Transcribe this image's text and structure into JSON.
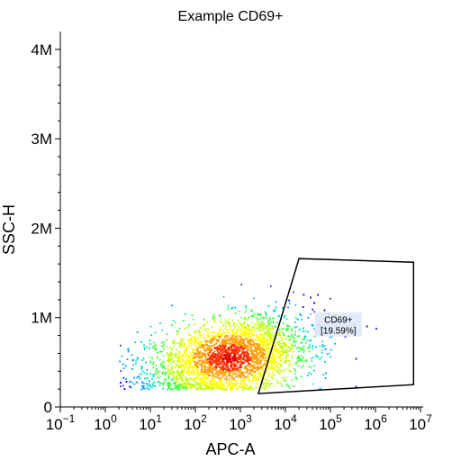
{
  "chart_data": {
    "type": "scatter",
    "title": "Example CD69+",
    "xlabel": "APC-A",
    "ylabel": "SSC-H",
    "x_scale": "log",
    "x_ticks": [
      {
        "value": 0.1,
        "base": "10",
        "exp": "−1"
      },
      {
        "value": 1,
        "base": "10",
        "exp": "0"
      },
      {
        "value": 10,
        "base": "10",
        "exp": "1"
      },
      {
        "value": 100,
        "base": "10",
        "exp": "2"
      },
      {
        "value": 1000,
        "base": "10",
        "exp": "3"
      },
      {
        "value": 10000,
        "base": "10",
        "exp": "4"
      },
      {
        "value": 100000,
        "base": "10",
        "exp": "5"
      },
      {
        "value": 1000000,
        "base": "10",
        "exp": "6"
      },
      {
        "value": 10000000,
        "base": "10",
        "exp": "7"
      }
    ],
    "y_ticks": [
      {
        "value": 0,
        "label": "0"
      },
      {
        "value": 1000000,
        "label": "1M"
      },
      {
        "value": 2000000,
        "label": "2M"
      },
      {
        "value": 3000000,
        "label": "3M"
      },
      {
        "value": 4000000,
        "label": "4M"
      }
    ],
    "xlim": [
      0.1,
      10000000
    ],
    "ylim": [
      0,
      4200000
    ],
    "grid": false,
    "density_colors": [
      "#0000ff",
      "#00a0ff",
      "#00e0c0",
      "#40ff40",
      "#c0ff00",
      "#ffff00",
      "#ffa000",
      "#ff3000",
      "#e00000"
    ],
    "gate": {
      "label": "CD69+",
      "percent": "[19.59%]",
      "vertices": [
        {
          "x": 2500,
          "y": 150000
        },
        {
          "x": 20000,
          "y": 1660000
        },
        {
          "x": 7000000,
          "y": 1620000
        },
        {
          "x": 7000000,
          "y": 250000
        }
      ]
    }
  }
}
